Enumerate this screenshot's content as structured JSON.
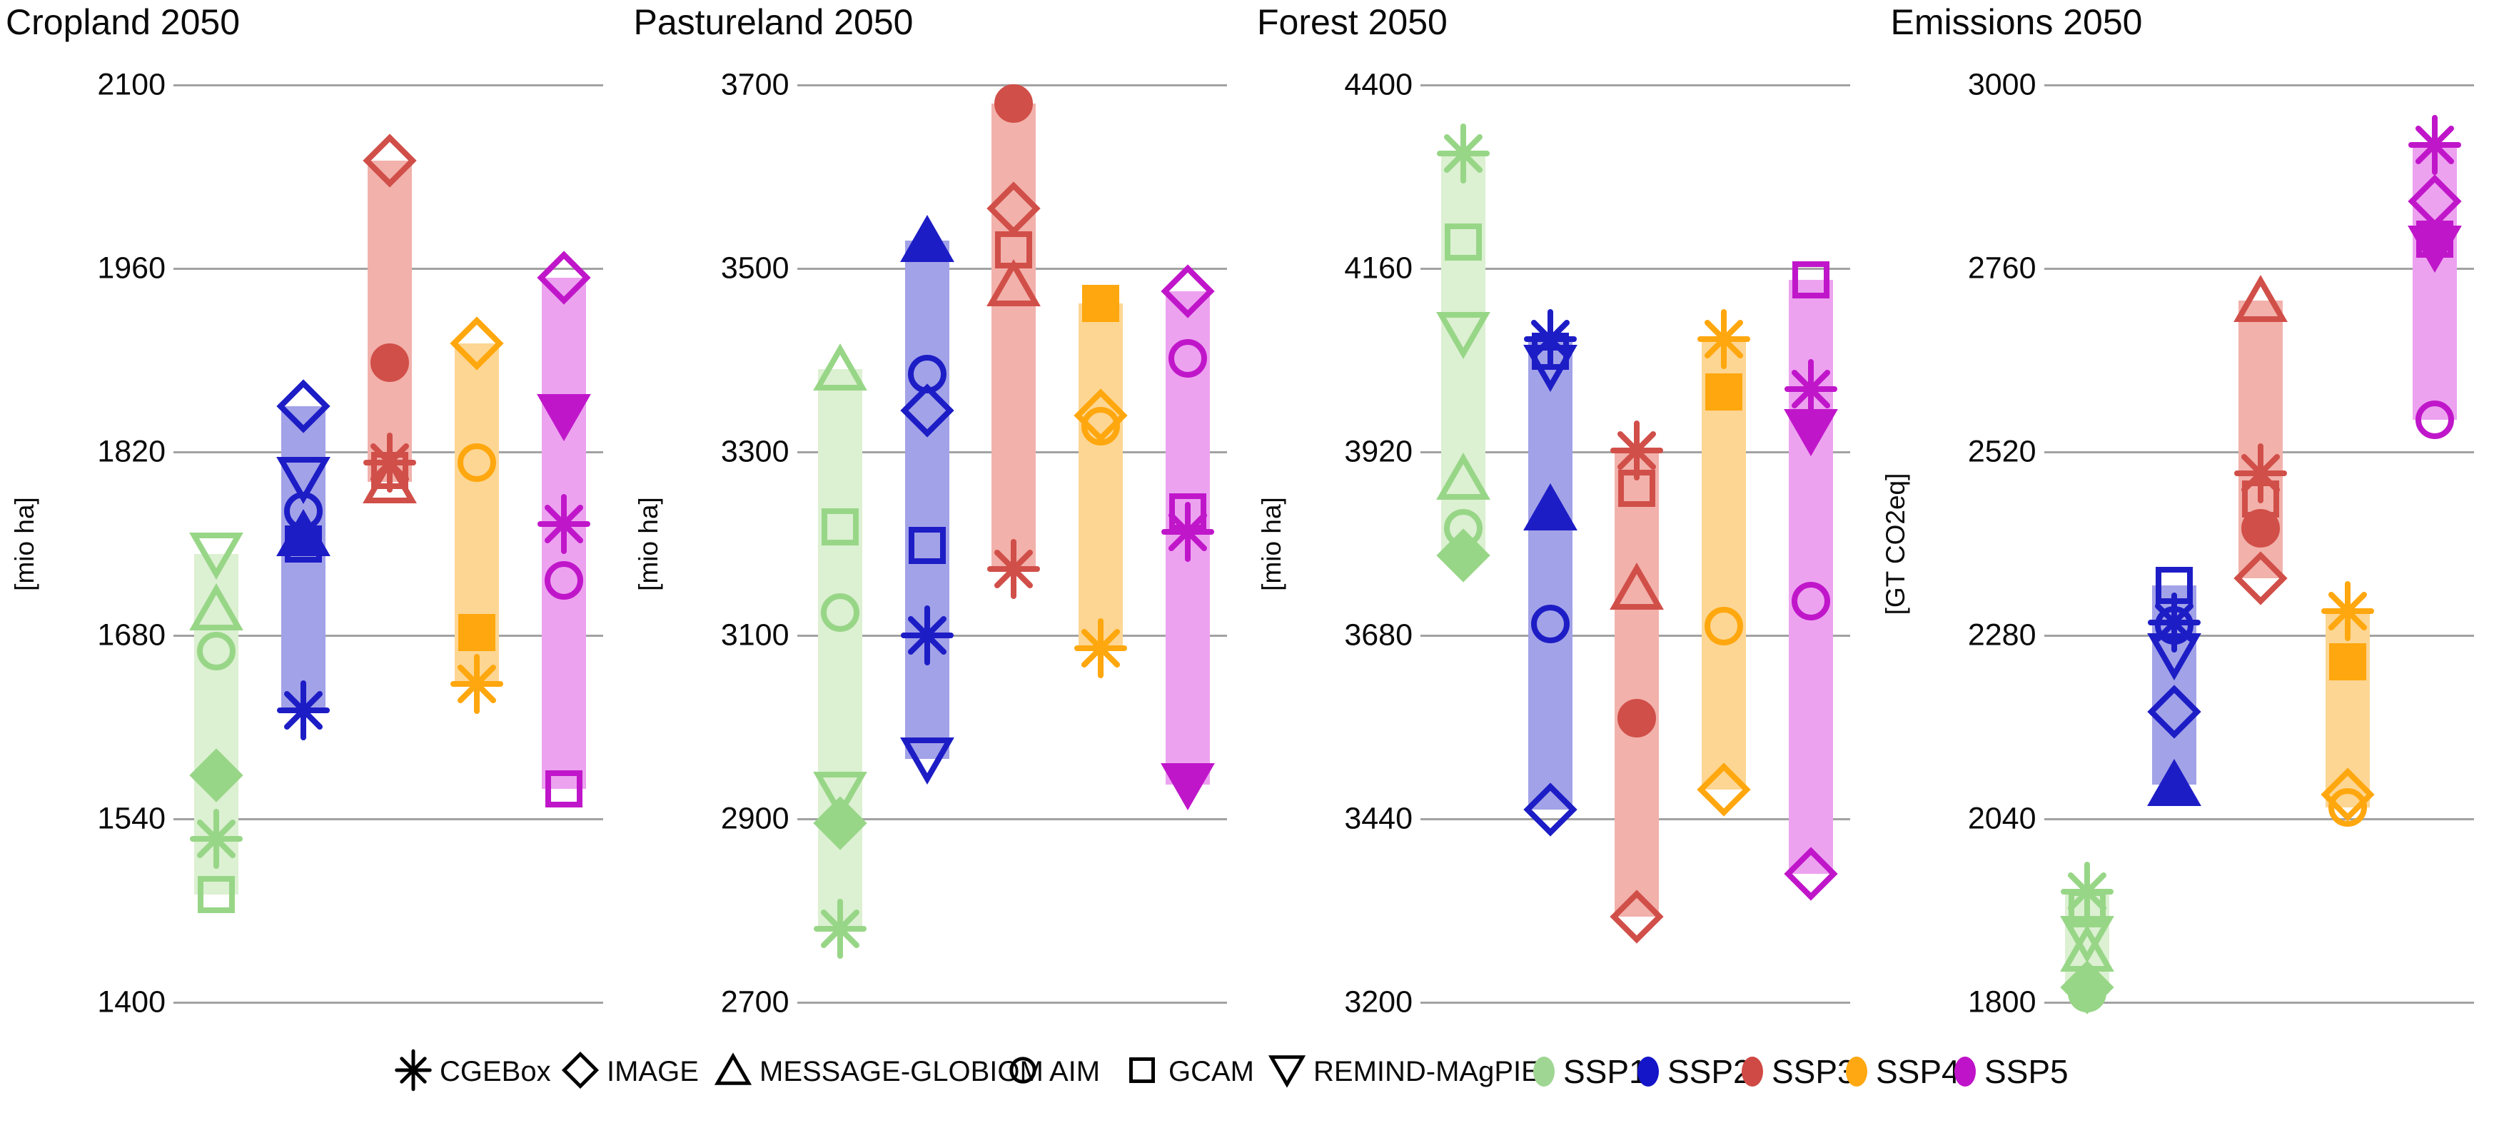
{
  "chart_data": [
    {
      "type": "scatter",
      "title": "Cropland 2050",
      "ylabel": "[mio ha]",
      "ylim": [
        1400,
        2100
      ],
      "yticks": [
        1400,
        1540,
        1680,
        1820,
        1960,
        2100
      ],
      "grid": true,
      "note": "Each SSP column shows a shaded vertical bar spanning the min-max of model results; markers are individual model values; filled marker = marker scenario model.",
      "groups": [
        {
          "ssp": "SSP1",
          "points": [
            {
              "model": "REMIND-MAgPIE",
              "value": 1742,
              "filled": false
            },
            {
              "model": "MESSAGE-GLOBIOM",
              "value": 1700,
              "filled": false
            },
            {
              "model": "AIM",
              "value": 1668,
              "filled": false
            },
            {
              "model": "IMAGE",
              "value": 1573,
              "filled": true
            },
            {
              "model": "CGEBox",
              "value": 1525,
              "filled": false
            },
            {
              "model": "GCAM",
              "value": 1482,
              "filled": false
            }
          ]
        },
        {
          "ssp": "SSP2",
          "points": [
            {
              "model": "IMAGE",
              "value": 1855,
              "filled": false
            },
            {
              "model": "REMIND-MAgPIE",
              "value": 1800,
              "filled": false
            },
            {
              "model": "AIM",
              "value": 1775,
              "filled": false
            },
            {
              "model": "MESSAGE-GLOBIOM",
              "value": 1757,
              "filled": true
            },
            {
              "model": "GCAM",
              "value": 1750,
              "filled": false
            },
            {
              "model": "CGEBox",
              "value": 1623,
              "filled": false
            }
          ]
        },
        {
          "ssp": "SSP3",
          "points": [
            {
              "model": "IMAGE",
              "value": 2042,
              "filled": false
            },
            {
              "model": "AIM",
              "value": 1888,
              "filled": true
            },
            {
              "model": "CGEBox",
              "value": 1812,
              "filled": false
            },
            {
              "model": "GCAM",
              "value": 1806,
              "filled": false
            },
            {
              "model": "MESSAGE-GLOBIOM",
              "value": 1797,
              "filled": false
            }
          ]
        },
        {
          "ssp": "SSP4",
          "points": [
            {
              "model": "IMAGE",
              "value": 1903,
              "filled": false
            },
            {
              "model": "AIM",
              "value": 1812,
              "filled": false
            },
            {
              "model": "GCAM",
              "value": 1682,
              "filled": true
            },
            {
              "model": "CGEBox",
              "value": 1643,
              "filled": false
            }
          ]
        },
        {
          "ssp": "SSP5",
          "points": [
            {
              "model": "IMAGE",
              "value": 1953,
              "filled": false
            },
            {
              "model": "REMIND-MAgPIE",
              "value": 1848,
              "filled": true
            },
            {
              "model": "CGEBox",
              "value": 1765,
              "filled": false
            },
            {
              "model": "AIM",
              "value": 1722,
              "filled": false
            },
            {
              "model": "GCAM",
              "value": 1563,
              "filled": false
            }
          ]
        }
      ]
    },
    {
      "type": "scatter",
      "title": "Pastureland 2050",
      "ylabel": "[mio ha]",
      "ylim": [
        2700,
        3700
      ],
      "yticks": [
        2700,
        2900,
        3100,
        3300,
        3500,
        3700
      ],
      "grid": true,
      "groups": [
        {
          "ssp": "SSP1",
          "points": [
            {
              "model": "MESSAGE-GLOBIOM",
              "value": 3390,
              "filled": false
            },
            {
              "model": "GCAM",
              "value": 3218,
              "filled": false
            },
            {
              "model": "AIM",
              "value": 3125,
              "filled": false
            },
            {
              "model": "REMIND-MAgPIE",
              "value": 2928,
              "filled": false
            },
            {
              "model": "IMAGE",
              "value": 2895,
              "filled": true
            },
            {
              "model": "CGEBox",
              "value": 2780,
              "filled": false
            }
          ]
        },
        {
          "ssp": "SSP2",
          "points": [
            {
              "model": "MESSAGE-GLOBIOM",
              "value": 3530,
              "filled": true
            },
            {
              "model": "AIM",
              "value": 3385,
              "filled": false
            },
            {
              "model": "IMAGE",
              "value": 3345,
              "filled": false
            },
            {
              "model": "GCAM",
              "value": 3198,
              "filled": false
            },
            {
              "model": "CGEBox",
              "value": 3100,
              "filled": false
            },
            {
              "model": "REMIND-MAgPIE",
              "value": 2965,
              "filled": false
            }
          ]
        },
        {
          "ssp": "SSP3",
          "points": [
            {
              "model": "AIM",
              "value": 3680,
              "filled": true
            },
            {
              "model": "IMAGE",
              "value": 3565,
              "filled": false
            },
            {
              "model": "GCAM",
              "value": 3520,
              "filled": false
            },
            {
              "model": "MESSAGE-GLOBIOM",
              "value": 3482,
              "filled": false
            },
            {
              "model": "CGEBox",
              "value": 3172,
              "filled": false
            }
          ]
        },
        {
          "ssp": "SSP4",
          "points": [
            {
              "model": "GCAM",
              "value": 3462,
              "filled": true
            },
            {
              "model": "IMAGE",
              "value": 3340,
              "filled": false
            },
            {
              "model": "AIM",
              "value": 3328,
              "filled": false
            },
            {
              "model": "CGEBox",
              "value": 3086,
              "filled": false
            }
          ]
        },
        {
          "ssp": "SSP5",
          "points": [
            {
              "model": "IMAGE",
              "value": 3475,
              "filled": false
            },
            {
              "model": "AIM",
              "value": 3402,
              "filled": false
            },
            {
              "model": "GCAM",
              "value": 3235,
              "filled": false
            },
            {
              "model": "CGEBox",
              "value": 3213,
              "filled": false
            },
            {
              "model": "REMIND-MAgPIE",
              "value": 2937,
              "filled": true
            }
          ]
        }
      ]
    },
    {
      "type": "scatter",
      "title": "Forest 2050",
      "ylabel": "[mio ha]",
      "ylim": [
        3200,
        4400
      ],
      "yticks": [
        3200,
        3440,
        3680,
        3920,
        4160,
        4400
      ],
      "grid": true,
      "groups": [
        {
          "ssp": "SSP1",
          "points": [
            {
              "model": "CGEBox",
              "value": 4310,
              "filled": false
            },
            {
              "model": "GCAM",
              "value": 4195,
              "filled": false
            },
            {
              "model": "REMIND-MAgPIE",
              "value": 4075,
              "filled": false
            },
            {
              "model": "MESSAGE-GLOBIOM",
              "value": 3885,
              "filled": false
            },
            {
              "model": "AIM",
              "value": 3820,
              "filled": false
            },
            {
              "model": "IMAGE",
              "value": 3785,
              "filled": true
            }
          ]
        },
        {
          "ssp": "SSP2",
          "points": [
            {
              "model": "CGEBox",
              "value": 4068,
              "filled": false
            },
            {
              "model": "GCAM",
              "value": 4052,
              "filled": false
            },
            {
              "model": "REMIND-MAgPIE",
              "value": 4032,
              "filled": false
            },
            {
              "model": "MESSAGE-GLOBIOM",
              "value": 3845,
              "filled": true
            },
            {
              "model": "AIM",
              "value": 3695,
              "filled": false
            },
            {
              "model": "IMAGE",
              "value": 3452,
              "filled": false
            }
          ]
        },
        {
          "ssp": "SSP3",
          "points": [
            {
              "model": "CGEBox",
              "value": 3922,
              "filled": false
            },
            {
              "model": "GCAM",
              "value": 3872,
              "filled": false
            },
            {
              "model": "MESSAGE-GLOBIOM",
              "value": 3742,
              "filled": false
            },
            {
              "model": "AIM",
              "value": 3572,
              "filled": true
            },
            {
              "model": "IMAGE",
              "value": 3312,
              "filled": false
            }
          ]
        },
        {
          "ssp": "SSP4",
          "points": [
            {
              "model": "CGEBox",
              "value": 4068,
              "filled": false
            },
            {
              "model": "GCAM",
              "value": 3998,
              "filled": true
            },
            {
              "model": "AIM",
              "value": 3692,
              "filled": false
            },
            {
              "model": "IMAGE",
              "value": 3478,
              "filled": false
            }
          ]
        },
        {
          "ssp": "SSP5",
          "points": [
            {
              "model": "GCAM",
              "value": 4145,
              "filled": false
            },
            {
              "model": "CGEBox",
              "value": 4002,
              "filled": false
            },
            {
              "model": "REMIND-MAgPIE",
              "value": 3948,
              "filled": true
            },
            {
              "model": "AIM",
              "value": 3725,
              "filled": false
            },
            {
              "model": "IMAGE",
              "value": 3368,
              "filled": false
            }
          ]
        }
      ]
    },
    {
      "type": "scatter",
      "title": "Emissions 2050",
      "ylabel": "[GT CO2eq]",
      "ylim": [
        1800,
        3000
      ],
      "yticks": [
        1800,
        2040,
        2280,
        2520,
        2760,
        3000
      ],
      "grid": true,
      "groups": [
        {
          "ssp": "SSP1",
          "points": [
            {
              "model": "CGEBox",
              "value": 1945,
              "filled": false
            },
            {
              "model": "GCAM",
              "value": 1922,
              "filled": false
            },
            {
              "model": "REMIND-MAgPIE",
              "value": 1885,
              "filled": false
            },
            {
              "model": "MESSAGE-GLOBIOM",
              "value": 1868,
              "filled": false
            },
            {
              "model": "IMAGE",
              "value": 1820,
              "filled": true
            },
            {
              "model": "AIM",
              "value": 1812,
              "filled": false
            }
          ]
        },
        {
          "ssp": "SSP2",
          "points": [
            {
              "model": "GCAM",
              "value": 2345,
              "filled": false
            },
            {
              "model": "CGEBox",
              "value": 2297,
              "filled": false
            },
            {
              "model": "AIM",
              "value": 2293,
              "filled": false
            },
            {
              "model": "REMIND-MAgPIE",
              "value": 2255,
              "filled": false
            },
            {
              "model": "IMAGE",
              "value": 2180,
              "filled": false
            },
            {
              "model": "MESSAGE-GLOBIOM",
              "value": 2085,
              "filled": true
            }
          ]
        },
        {
          "ssp": "SSP3",
          "points": [
            {
              "model": "MESSAGE-GLOBIOM",
              "value": 2718,
              "filled": false
            },
            {
              "model": "CGEBox",
              "value": 2492,
              "filled": false
            },
            {
              "model": "GCAM",
              "value": 2458,
              "filled": false
            },
            {
              "model": "AIM",
              "value": 2420,
              "filled": true
            },
            {
              "model": "IMAGE",
              "value": 2355,
              "filled": false
            }
          ]
        },
        {
          "ssp": "SSP4",
          "points": [
            {
              "model": "CGEBox",
              "value": 2312,
              "filled": false
            },
            {
              "model": "GCAM",
              "value": 2245,
              "filled": true
            },
            {
              "model": "IMAGE",
              "value": 2072,
              "filled": false
            },
            {
              "model": "AIM",
              "value": 2055,
              "filled": false
            }
          ]
        },
        {
          "ssp": "SSP5",
          "points": [
            {
              "model": "CGEBox",
              "value": 2922,
              "filled": false
            },
            {
              "model": "IMAGE",
              "value": 2848,
              "filled": false
            },
            {
              "model": "GCAM",
              "value": 2798,
              "filled": false
            },
            {
              "model": "REMIND-MAgPIE",
              "value": 2788,
              "filled": true
            },
            {
              "model": "AIM",
              "value": 2562,
              "filled": false
            }
          ]
        }
      ]
    }
  ],
  "model_legend": [
    {
      "label": "CGEBox",
      "marker": "asterisk"
    },
    {
      "label": "IMAGE",
      "marker": "diamond"
    },
    {
      "label": "MESSAGE-GLOBIOM",
      "marker": "triangle-up"
    },
    {
      "label": "AIM",
      "marker": "circle"
    },
    {
      "label": "GCAM",
      "marker": "square"
    },
    {
      "label": "REMIND-MAgPIE",
      "marker": "triangle-down"
    }
  ],
  "ssp_legend": [
    {
      "label": "SSP1",
      "color": "#9fd693"
    },
    {
      "label": "SSP2",
      "color": "#1414c8"
    },
    {
      "label": "SSP3",
      "color": "#cf4a44"
    },
    {
      "label": "SSP4",
      "color": "#ffa812"
    },
    {
      "label": "SSP5",
      "color": "#bf13c9"
    }
  ],
  "ssp_colors": {
    "SSP1": {
      "stroke": "#98d687",
      "bar": "#dcf0d2"
    },
    "SSP2": {
      "stroke": "#1d1dc6",
      "bar": "#a2a2e8"
    },
    "SSP3": {
      "stroke": "#d14f49",
      "bar": "#f2b1ab"
    },
    "SSP4": {
      "stroke": "#ffa70e",
      "bar": "#fdd693"
    },
    "SSP5": {
      "stroke": "#c016ca",
      "bar": "#eda2f0"
    }
  },
  "model_markers": {
    "CGEBox": "asterisk",
    "IMAGE": "diamond",
    "MESSAGE-GLOBIOM": "triangle-up",
    "AIM": "circle",
    "GCAM": "square",
    "REMIND-MAgPIE": "triangle-down"
  }
}
